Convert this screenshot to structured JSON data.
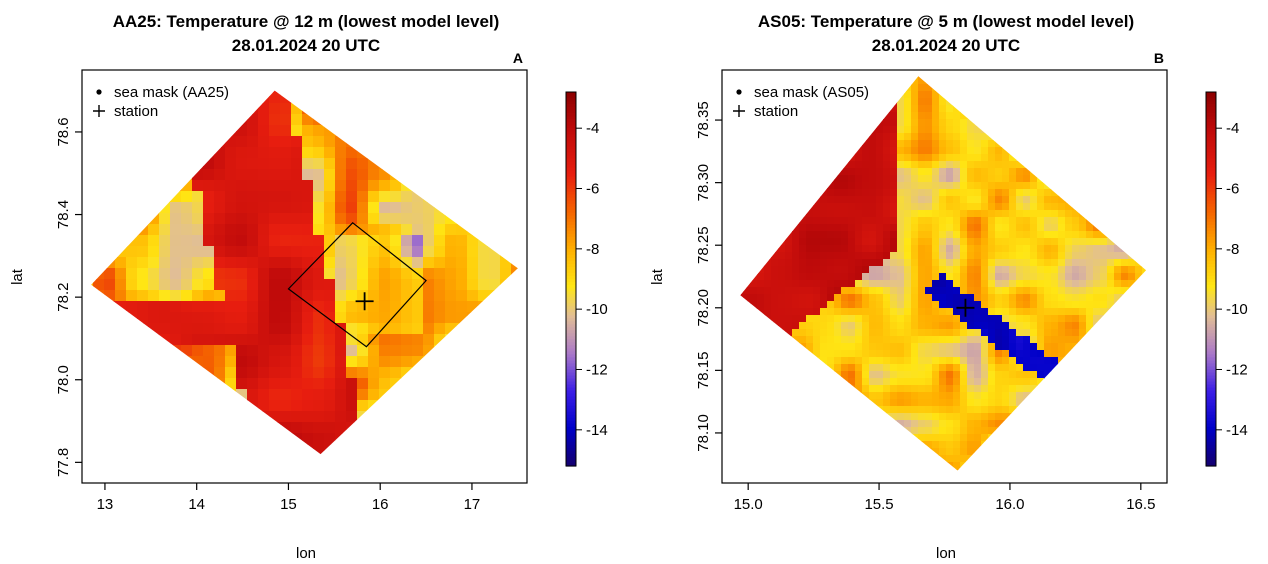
{
  "chart_data": [
    {
      "type": "heatmap",
      "panel": "A",
      "title": "AA25: Temperature @ 12 m (lowest model level)",
      "subtitle": "28.01.2024 20 UTC",
      "xlabel": "lon",
      "ylabel": "lat",
      "xlim": [
        12.75,
        17.6
      ],
      "ylim": [
        77.75,
        78.75
      ],
      "xticks": [
        "13",
        "14",
        "15",
        "16",
        "17"
      ],
      "yticks": [
        "77.8",
        "78.0",
        "78.2",
        "78.4",
        "78.6"
      ],
      "domain_corners": [
        [
          12.85,
          78.23
        ],
        [
          15.35,
          77.82
        ],
        [
          17.5,
          78.27
        ],
        [
          14.85,
          78.7
        ]
      ],
      "inner_box_corners": [
        [
          15.0,
          78.22
        ],
        [
          15.85,
          78.08
        ],
        [
          16.5,
          78.24
        ],
        [
          15.7,
          78.38
        ]
      ],
      "station": {
        "lon": 15.83,
        "lat": 78.19
      },
      "legend": [
        "sea mask (AA25)",
        "station"
      ],
      "legend_position": "top-left",
      "colorbar": {
        "min": -15.2,
        "max": -2.8,
        "ticks": [
          "-4",
          "-6",
          "-8",
          "-10",
          "-12",
          "-14"
        ]
      }
    },
    {
      "type": "heatmap",
      "panel": "B",
      "title": "AS05: Temperature @ 5 m (lowest model level)",
      "subtitle": "28.01.2024 20 UTC",
      "xlabel": "lon",
      "ylabel": "lat",
      "xlim": [
        14.9,
        16.6
      ],
      "ylim": [
        78.06,
        78.39
      ],
      "xticks": [
        "15.0",
        "15.5",
        "16.0",
        "16.5"
      ],
      "yticks": [
        "78.10",
        "78.15",
        "78.20",
        "78.25",
        "78.30",
        "78.35"
      ],
      "domain_corners": [
        [
          14.97,
          78.21
        ],
        [
          15.8,
          78.07
        ],
        [
          16.52,
          78.23
        ],
        [
          15.65,
          78.385
        ]
      ],
      "station": {
        "lon": 15.83,
        "lat": 78.2
      },
      "legend": [
        "sea mask (AS05)",
        "station"
      ],
      "legend_position": "top-left",
      "colorbar": {
        "min": -15.2,
        "max": -2.8,
        "ticks": [
          "-4",
          "-6",
          "-8",
          "-10",
          "-12",
          "-14"
        ]
      }
    }
  ]
}
